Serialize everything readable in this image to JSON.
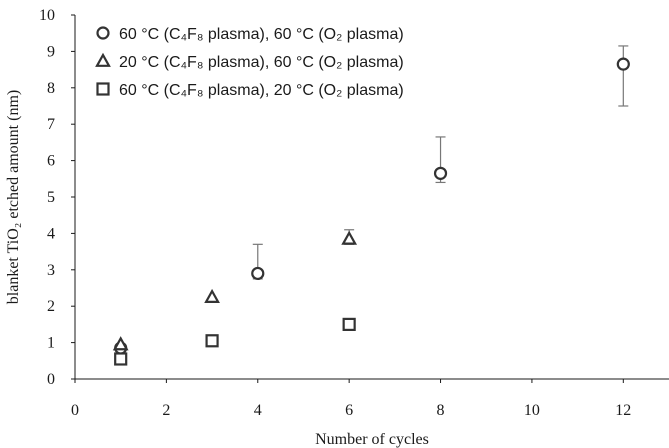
{
  "chart_data": {
    "type": "scatter",
    "xlabel": "Number of cycles",
    "ylabel": "blanket TiO₂ etched amount (nm)",
    "xlim": [
      0,
      13
    ],
    "ylim": [
      0,
      10
    ],
    "xticks": [
      "0",
      "2",
      "4",
      "6",
      "8",
      "10",
      "12"
    ],
    "yticks": [
      "0",
      "1",
      "2",
      "3",
      "4",
      "5",
      "6",
      "7",
      "8",
      "9",
      "10"
    ],
    "grid": false,
    "legend_position": "top-left",
    "series": [
      {
        "name": "60 °C (C₄F₈ plasma), 60 °C (O₂ plasma)",
        "marker": "circle",
        "points": [
          {
            "x": 1,
            "y": 0.85
          },
          {
            "x": 4,
            "y": 2.9,
            "err_low": 0.15,
            "err_high": 0.8
          },
          {
            "x": 8,
            "y": 5.65,
            "err_low": 0.25,
            "err_high": 1.0
          },
          {
            "x": 12,
            "y": 8.65,
            "err_low": 1.15,
            "err_high": 0.5
          }
        ]
      },
      {
        "name": "20 °C (C₄F₈ plasma), 60 °C (O₂ plasma)",
        "marker": "triangle",
        "points": [
          {
            "x": 1,
            "y": 0.95
          },
          {
            "x": 3,
            "y": 2.25
          },
          {
            "x": 6,
            "y": 3.85,
            "err_low": 0.15,
            "err_high": 0.25
          }
        ]
      },
      {
        "name": "60 °C (C₄F₈ plasma), 20 °C (O₂ plasma)",
        "marker": "square",
        "points": [
          {
            "x": 1,
            "y": 0.55
          },
          {
            "x": 3,
            "y": 1.05
          },
          {
            "x": 6,
            "y": 1.5
          }
        ]
      }
    ]
  }
}
